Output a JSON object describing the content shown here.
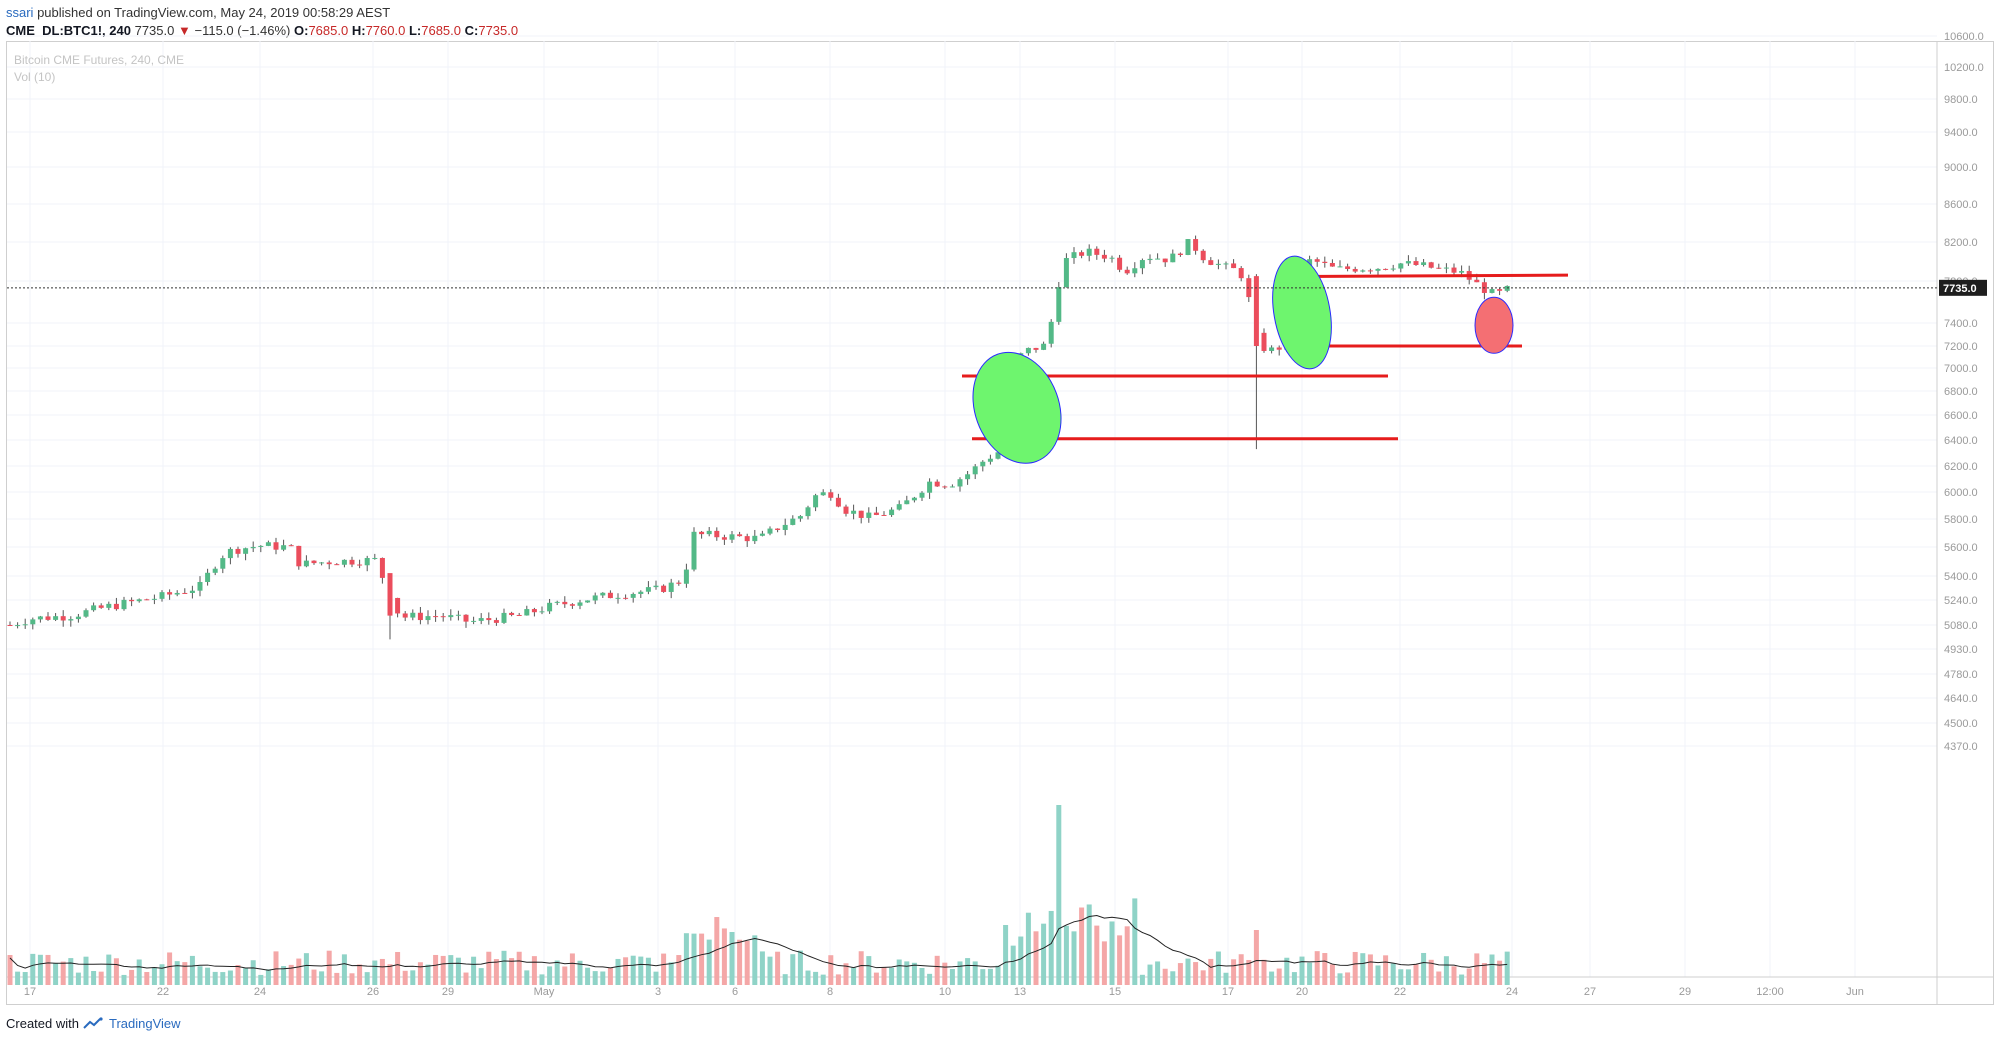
{
  "header": {
    "user": "ssari",
    "published_text": " published on TradingView.com, May 24, 2019 00:58:29 AEST"
  },
  "ticker": {
    "symbol": "CME_DL:BTC1!, 240",
    "last": "7735.0",
    "change": "−115.0 (−1.46%)",
    "o_label": "O:",
    "o_value": "7685.0",
    "h_label": "H:",
    "h_value": "7760.0",
    "l_label": "L:",
    "l_value": "7685.0",
    "c_label": "C:",
    "c_value": "7735.0"
  },
  "legend": {
    "title": "Bitcoin CME Futures, 240, CME",
    "vol": "Vol (10)"
  },
  "footer": {
    "created_with": "Created with",
    "brand": "TradingView"
  },
  "colors": {
    "up": "#53b987",
    "down": "#eb4d5c",
    "vol_up": "#8fd3c7",
    "vol_down": "#f4a7a7",
    "hline": "#e61c1c",
    "ellipse_green": "#6ef56e",
    "ellipse_red": "#f46f73",
    "ellipse_stroke": "#2a2aff",
    "grid": "#f0f3fa",
    "axis_text": "#9a9a9a",
    "last_price_bg": "#1e1e1e"
  },
  "chart_data": {
    "type": "candlestick",
    "title": "Bitcoin CME Futures, 240, CME",
    "y_axis_ticks": [
      10600,
      10200,
      9800,
      9400,
      9000,
      8600,
      8200,
      7800,
      7400,
      7200,
      7000,
      6800,
      6600,
      6400,
      6200,
      6000,
      5800,
      5600,
      5400,
      5240,
      5080,
      4930,
      4780,
      4640,
      4500,
      4370
    ],
    "y_axis_tick_labels": [
      "10600.0",
      "10200.0",
      "9800.0",
      "9400.0",
      "9000.0",
      "8600.0",
      "8200.0",
      "7800.0",
      "7400.0",
      "7200.0",
      "7000.0",
      "6800.0",
      "6600.0",
      "6400.0",
      "6200.0",
      "6000.0",
      "5800.0",
      "5600.0",
      "5400.0",
      "5240.0",
      "5080.0",
      "4930.0",
      "4780.0",
      "4640.0",
      "4500.0",
      "4370.0"
    ],
    "x_axis_ticks": [
      "17",
      "22",
      "24",
      "26",
      "29",
      "May",
      "3",
      "6",
      "8",
      "10",
      "13",
      "15",
      "17",
      "20",
      "22",
      "24",
      "27",
      "29",
      "12:00",
      "Jun"
    ],
    "last_price": 7735.0,
    "last_price_label": "7735.0",
    "horizontal_lines": [
      {
        "name": "resistance",
        "from_label": "20",
        "to_label": "27",
        "y_start": 7845,
        "y_end": 7860
      },
      {
        "name": "support-upper",
        "from_label": "20",
        "to_label": "24",
        "y": 7200
      },
      {
        "name": "support-mid",
        "from_label": "10",
        "to_label": "22",
        "y": 6930
      },
      {
        "name": "support-low",
        "from_label": "10",
        "to_label": "22",
        "y": 6410
      }
    ],
    "ellipses": [
      {
        "name": "breakout-zone",
        "color": "green",
        "x_label": "13",
        "y_center": 6660
      },
      {
        "name": "retest-zone",
        "color": "green",
        "x_label": "20",
        "y_center": 7500
      },
      {
        "name": "current-dip",
        "color": "red",
        "x_label": "24",
        "y_center": 7380
      }
    ],
    "volume_indicator": "Vol (10)"
  }
}
